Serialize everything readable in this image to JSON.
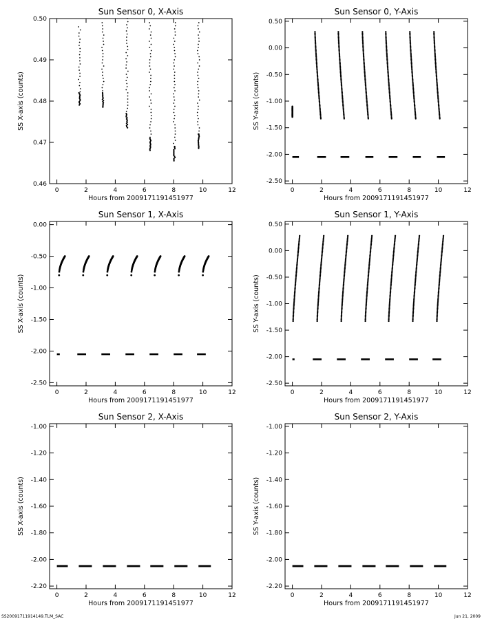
{
  "footer": {
    "left_text": "SS20091711914149.TLM_SAC",
    "right_text": "Jun 21, 2009"
  },
  "chart_data": [
    {
      "type": "scatter",
      "title": "Sun Sensor 0, X-Axis",
      "xlabel": "Hours from 2009171191451977",
      "ylabel": "SS X-axis (counts)",
      "xlim": [
        -0.5,
        12
      ],
      "ylim": [
        0.46,
        0.5
      ],
      "xticks": [
        0,
        2,
        4,
        6,
        8,
        10,
        12
      ],
      "xtick_labels": [
        "0",
        "2",
        "4",
        "6",
        "8",
        "10",
        "12"
      ],
      "yticks": [
        0.46,
        0.47,
        0.48,
        0.49,
        0.5
      ],
      "ytick_labels": [
        "0.46",
        "0.47",
        "0.48",
        "0.49",
        "0.50"
      ],
      "grid": false,
      "series": [
        {
          "values": [
            {
              "x": 1.55,
              "y1": 0.498,
              "y2": 0.479,
              "dense_top": 0.482
            },
            {
              "x": 3.15,
              "y1": 0.499,
              "y2": 0.4785,
              "dense_top": 0.482
            },
            {
              "x": 4.8,
              "y1": 0.5,
              "y2": 0.4735,
              "dense_top": 0.477
            },
            {
              "x": 6.4,
              "y1": 0.499,
              "y2": 0.468,
              "dense_top": 0.471
            },
            {
              "x": 8.05,
              "y1": 0.499,
              "y2": 0.4655,
              "dense_top": 0.469
            },
            {
              "x": 9.7,
              "y1": 0.499,
              "y2": 0.4685,
              "dense_top": 0.472
            }
          ]
        }
      ]
    },
    {
      "type": "scatter",
      "title": "Sun Sensor 0, Y-Axis",
      "xlabel": "Hours from 2009171191451977",
      "ylabel": "SS Y-axis (counts)",
      "xlim": [
        -0.5,
        12
      ],
      "ylim": [
        -2.55,
        0.55
      ],
      "xticks": [
        0,
        2,
        4,
        6,
        8,
        10,
        12
      ],
      "xtick_labels": [
        "0",
        "2",
        "4",
        "6",
        "8",
        "10",
        "12"
      ],
      "yticks": [
        -2.5,
        -2.0,
        -1.5,
        -1.0,
        -0.5,
        0.0,
        0.5
      ],
      "ytick_labels": [
        "-2.50",
        "-2.00",
        "-1.50",
        "-1.00",
        "-0.50",
        "0.00",
        "0.50"
      ],
      "grid": false,
      "series": [
        {
          "values": [
            {
              "x1": 0.0,
              "y1": -1.1,
              "x2": 0.0,
              "y2": -1.3
            },
            {
              "x1": 1.55,
              "y1": 0.3,
              "x2": 1.95,
              "y2": -1.33
            },
            {
              "x1": 3.15,
              "y1": 0.3,
              "x2": 3.55,
              "y2": -1.33
            },
            {
              "x1": 4.8,
              "y1": 0.3,
              "x2": 5.2,
              "y2": -1.33
            },
            {
              "x1": 6.4,
              "y1": 0.3,
              "x2": 6.8,
              "y2": -1.33
            },
            {
              "x1": 8.05,
              "y1": 0.3,
              "x2": 8.45,
              "y2": -1.33
            },
            {
              "x1": 9.7,
              "y1": 0.3,
              "x2": 10.1,
              "y2": -1.33
            }
          ]
        },
        {
          "values": [
            {
              "x1": 0.0,
              "x2": 0.45,
              "y": -2.05
            },
            {
              "x1": 1.7,
              "x2": 2.3,
              "y": -2.05
            },
            {
              "x1": 3.3,
              "x2": 3.9,
              "y": -2.05
            },
            {
              "x1": 5.0,
              "x2": 5.55,
              "y": -2.05
            },
            {
              "x1": 6.6,
              "x2": 7.2,
              "y": -2.05
            },
            {
              "x1": 8.25,
              "x2": 8.8,
              "y": -2.05
            },
            {
              "x1": 9.9,
              "x2": 10.45,
              "y": -2.05
            }
          ]
        }
      ]
    },
    {
      "type": "scatter",
      "title": "Sun Sensor 1, X-Axis",
      "xlabel": "Hours from 2009171191451977",
      "ylabel": "SS X-axis (counts)",
      "xlim": [
        -0.5,
        12
      ],
      "ylim": [
        -2.55,
        0.05
      ],
      "xticks": [
        0,
        2,
        4,
        6,
        8,
        10,
        12
      ],
      "xtick_labels": [
        "0",
        "2",
        "4",
        "6",
        "8",
        "10",
        "12"
      ],
      "yticks": [
        -2.5,
        -2.0,
        -1.5,
        -1.0,
        -0.5,
        0.0
      ],
      "ytick_labels": [
        "-2.50",
        "-2.00",
        "-1.50",
        "-1.00",
        "-0.50",
        "0.00"
      ],
      "grid": false,
      "series": [
        {
          "values": [
            {
              "x1": 0.15,
              "x2": 0.55
            },
            {
              "x1": 1.8,
              "x2": 2.2
            },
            {
              "x1": 3.45,
              "x2": 3.85
            },
            {
              "x1": 5.1,
              "x2": 5.5
            },
            {
              "x1": 6.7,
              "x2": 7.1
            },
            {
              "x1": 8.35,
              "x2": 8.75
            },
            {
              "x1": 10.0,
              "x2": 10.4
            }
          ],
          "y_low": -0.8,
          "y_high": -0.5
        },
        {
          "values": [
            {
              "x1": 0.0,
              "x2": 0.2,
              "y": -2.05
            },
            {
              "x1": 1.4,
              "x2": 2.0,
              "y": -2.05
            },
            {
              "x1": 3.05,
              "x2": 3.65,
              "y": -2.05
            },
            {
              "x1": 4.7,
              "x2": 5.3,
              "y": -2.05
            },
            {
              "x1": 6.35,
              "x2": 6.95,
              "y": -2.05
            },
            {
              "x1": 8.0,
              "x2": 8.6,
              "y": -2.05
            },
            {
              "x1": 9.6,
              "x2": 10.2,
              "y": -2.05
            }
          ]
        }
      ]
    },
    {
      "type": "scatter",
      "title": "Sun Sensor 1, Y-Axis",
      "xlabel": "Hours from 2009171191451977",
      "ylabel": "SS Y-axis (counts)",
      "xlim": [
        -0.5,
        12
      ],
      "ylim": [
        -2.55,
        0.55
      ],
      "xticks": [
        0,
        2,
        4,
        6,
        8,
        10,
        12
      ],
      "xtick_labels": [
        "0",
        "2",
        "4",
        "6",
        "8",
        "10",
        "12"
      ],
      "yticks": [
        -2.5,
        -2.0,
        -1.5,
        -1.0,
        -0.5,
        0.0,
        0.5
      ],
      "ytick_labels": [
        "-2.50",
        "-2.00",
        "-1.50",
        "-1.00",
        "-0.50",
        "0.00",
        "0.50"
      ],
      "grid": false,
      "series": [
        {
          "values": [
            {
              "x1": 0.05,
              "y1": -1.33,
              "x2": 0.5,
              "y2": 0.28
            },
            {
              "x1": 1.7,
              "y1": -1.33,
              "x2": 2.15,
              "y2": 0.28
            },
            {
              "x1": 3.35,
              "y1": -1.33,
              "x2": 3.8,
              "y2": 0.28
            },
            {
              "x1": 5.0,
              "y1": -1.33,
              "x2": 5.45,
              "y2": 0.28
            },
            {
              "x1": 6.6,
              "y1": -1.33,
              "x2": 7.05,
              "y2": 0.28
            },
            {
              "x1": 8.25,
              "y1": -1.33,
              "x2": 8.7,
              "y2": 0.28
            },
            {
              "x1": 9.9,
              "y1": -1.33,
              "x2": 10.35,
              "y2": 0.28
            }
          ]
        },
        {
          "values": [
            {
              "x1": 0.0,
              "x2": 0.15,
              "y": -2.05
            },
            {
              "x1": 1.4,
              "x2": 2.0,
              "y": -2.05
            },
            {
              "x1": 3.05,
              "x2": 3.65,
              "y": -2.05
            },
            {
              "x1": 4.7,
              "x2": 5.3,
              "y": -2.05
            },
            {
              "x1": 6.35,
              "x2": 6.95,
              "y": -2.05
            },
            {
              "x1": 8.0,
              "x2": 8.6,
              "y": -2.05
            },
            {
              "x1": 9.6,
              "x2": 10.2,
              "y": -2.05
            }
          ]
        }
      ]
    },
    {
      "type": "scatter",
      "title": "Sun Sensor 2, X-Axis",
      "xlabel": "Hours from 2009171191451977",
      "ylabel": "SS X-axis (counts)",
      "xlim": [
        -0.5,
        12
      ],
      "ylim": [
        -2.22,
        -0.98
      ],
      "xticks": [
        0,
        2,
        4,
        6,
        8,
        10,
        12
      ],
      "xtick_labels": [
        "0",
        "2",
        "4",
        "6",
        "8",
        "10",
        "12"
      ],
      "yticks": [
        -2.2,
        -2.0,
        -1.8,
        -1.6,
        -1.4,
        -1.2,
        -1.0
      ],
      "ytick_labels": [
        "-2.20",
        "-2.00",
        "-1.80",
        "-1.60",
        "-1.40",
        "-1.20",
        "-1.00"
      ],
      "grid": false,
      "series": [
        {
          "values": [
            {
              "x1": 0.0,
              "x2": 0.75,
              "y": -2.05
            },
            {
              "x1": 1.5,
              "x2": 2.4,
              "y": -2.05
            },
            {
              "x1": 3.15,
              "x2": 4.05,
              "y": -2.05
            },
            {
              "x1": 4.8,
              "x2": 5.7,
              "y": -2.05
            },
            {
              "x1": 6.4,
              "x2": 7.3,
              "y": -2.05
            },
            {
              "x1": 8.05,
              "x2": 8.95,
              "y": -2.05
            },
            {
              "x1": 9.7,
              "x2": 10.55,
              "y": -2.05
            }
          ]
        }
      ]
    },
    {
      "type": "scatter",
      "title": "Sun Sensor 2, Y-Axis",
      "xlabel": "Hours from 2009171191451977",
      "ylabel": "SS Y-axis (counts)",
      "xlim": [
        -0.5,
        12
      ],
      "ylim": [
        -2.22,
        -0.98
      ],
      "xticks": [
        0,
        2,
        4,
        6,
        8,
        10,
        12
      ],
      "xtick_labels": [
        "0",
        "2",
        "4",
        "6",
        "8",
        "10",
        "12"
      ],
      "yticks": [
        -2.2,
        -2.0,
        -1.8,
        -1.6,
        -1.4,
        -1.2,
        -1.0
      ],
      "ytick_labels": [
        "-2.20",
        "-2.00",
        "-1.80",
        "-1.60",
        "-1.40",
        "-1.20",
        "-1.00"
      ],
      "grid": false,
      "series": [
        {
          "values": [
            {
              "x1": 0.0,
              "x2": 0.75,
              "y": -2.05
            },
            {
              "x1": 1.5,
              "x2": 2.4,
              "y": -2.05
            },
            {
              "x1": 3.15,
              "x2": 4.05,
              "y": -2.05
            },
            {
              "x1": 4.8,
              "x2": 5.7,
              "y": -2.05
            },
            {
              "x1": 6.4,
              "x2": 7.3,
              "y": -2.05
            },
            {
              "x1": 8.05,
              "x2": 8.95,
              "y": -2.05
            },
            {
              "x1": 9.7,
              "x2": 10.55,
              "y": -2.05
            }
          ]
        }
      ]
    }
  ]
}
